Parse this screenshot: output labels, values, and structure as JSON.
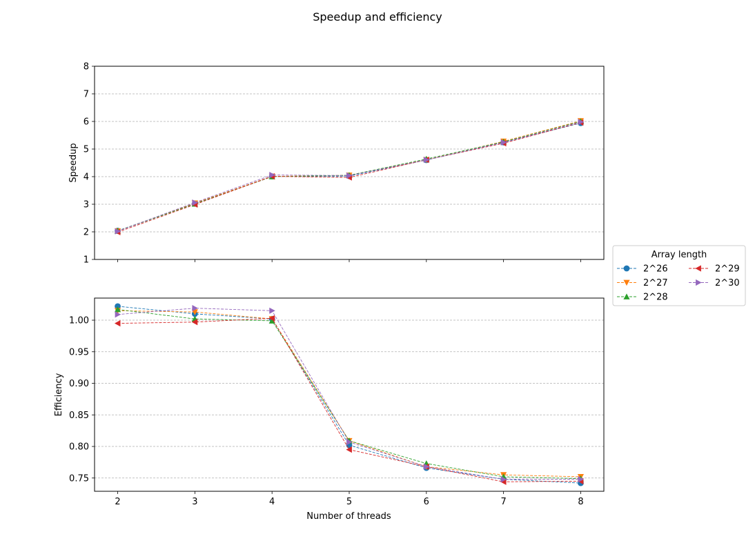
{
  "chart_data": {
    "type": "line",
    "title": "Speedup and efficiency",
    "x": [
      2,
      3,
      4,
      5,
      6,
      7,
      8
    ],
    "xlabel": "Number of threads",
    "legend": {
      "title": "Array length",
      "placement": "right",
      "columns": 2
    },
    "series_styles": [
      {
        "color": "#1f77b4",
        "marker": "circle"
      },
      {
        "color": "#ff7f0e",
        "marker": "triangle-down"
      },
      {
        "color": "#2ca02c",
        "marker": "triangle-up"
      },
      {
        "color": "#d62728",
        "marker": "triangle-left"
      },
      {
        "color": "#9467bd",
        "marker": "triangle-right"
      }
    ],
    "line_style": "dashed",
    "grid": "horizontal",
    "panels": [
      {
        "ylabel": "Speedup",
        "ylim": [
          1,
          8
        ],
        "yticks": [
          "1",
          "2",
          "3",
          "4",
          "5",
          "6",
          "7",
          "8"
        ],
        "series": [
          {
            "name": "2^26",
            "values": [
              2.04,
              3.03,
              4.01,
              4.02,
              4.6,
              5.24,
              5.94
            ]
          },
          {
            "name": "2^27",
            "values": [
              2.03,
              3.04,
              4.01,
              4.05,
              4.61,
              5.28,
              6.02
            ]
          },
          {
            "name": "2^28",
            "values": [
              2.03,
              3.01,
              4.0,
              4.05,
              4.64,
              5.26,
              6.0
            ]
          },
          {
            "name": "2^29",
            "values": [
              1.99,
              2.99,
              4.01,
              3.97,
              4.61,
              5.21,
              5.96
            ]
          },
          {
            "name": "2^30",
            "values": [
              2.02,
              3.06,
              4.06,
              4.04,
              4.61,
              5.24,
              5.98
            ]
          }
        ]
      },
      {
        "ylabel": "Efficiency",
        "ylim": [
          0.729,
          1.035
        ],
        "yticks": [
          "0.75",
          "0.80",
          "0.85",
          "0.90",
          "0.95",
          "1.00"
        ],
        "series": [
          {
            "name": "2^26",
            "values": [
              1.022,
              1.01,
              1.002,
              0.802,
              0.766,
              0.748,
              0.742
            ]
          },
          {
            "name": "2^27",
            "values": [
              1.015,
              1.013,
              1.002,
              0.809,
              0.768,
              0.755,
              0.752
            ]
          },
          {
            "name": "2^28",
            "values": [
              1.017,
              1.002,
              0.999,
              0.809,
              0.773,
              0.752,
              0.749
            ]
          },
          {
            "name": "2^29",
            "values": [
              0.995,
              0.997,
              1.003,
              0.795,
              0.768,
              0.744,
              0.745
            ]
          },
          {
            "name": "2^30",
            "values": [
              1.009,
              1.019,
              1.015,
              0.807,
              0.768,
              0.748,
              0.748
            ]
          }
        ]
      }
    ]
  }
}
